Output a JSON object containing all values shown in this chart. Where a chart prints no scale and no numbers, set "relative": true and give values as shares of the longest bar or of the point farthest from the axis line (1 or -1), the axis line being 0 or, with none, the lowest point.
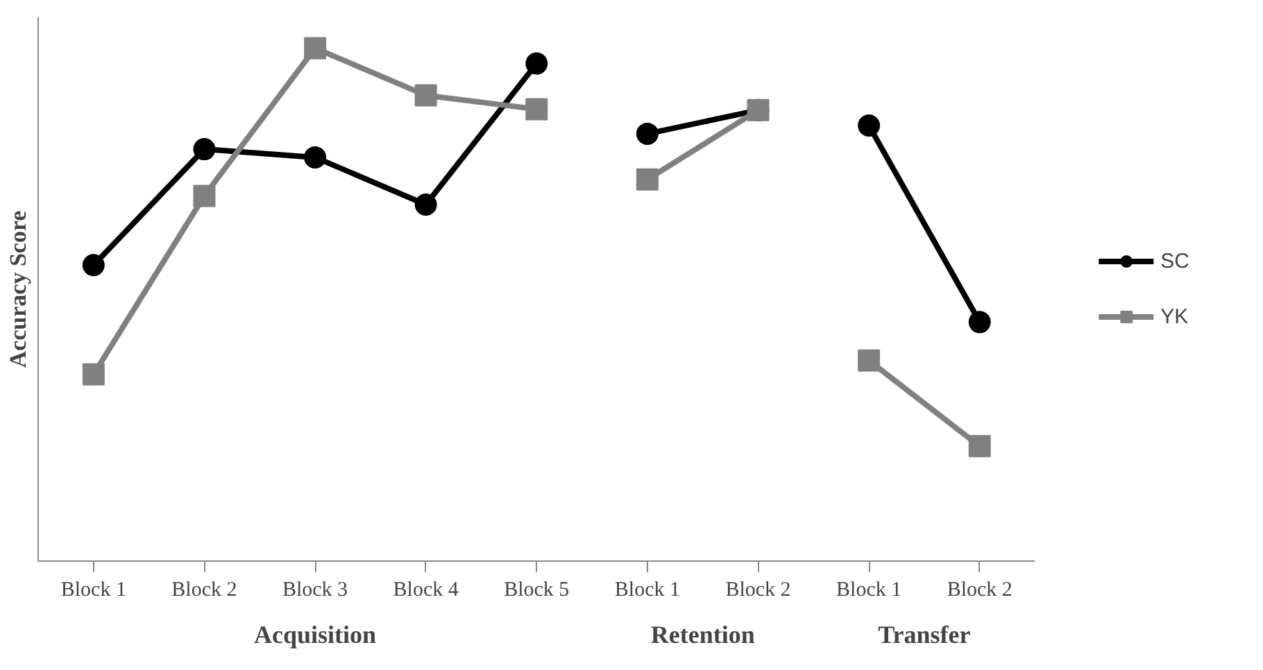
{
  "chart_data": {
    "type": "line",
    "relative": true,
    "ylabel": "Accuracy Score",
    "categories": [
      "Block 1",
      "Block 2",
      "Block 3",
      "Block 4",
      "Block 5",
      "Block 1",
      "Block 2",
      "Block 1",
      "Block 2"
    ],
    "series": [
      {
        "name": "SC",
        "color": "#000000",
        "marker": "circle",
        "values": [
          0.577,
          0.803,
          0.787,
          0.695,
          0.97,
          null,
          null,
          null,
          null
        ]
      },
      {
        "color": "#000000",
        "marker": "circle",
        "values": [
          null,
          null,
          null,
          null,
          null,
          0.833,
          0.879,
          null,
          null
        ]
      },
      {
        "color": "#000000",
        "marker": "circle",
        "values": [
          null,
          null,
          null,
          null,
          null,
          null,
          null,
          0.849,
          0.466
        ]
      },
      {
        "name": "YK",
        "color": "#808080",
        "marker": "square",
        "values": [
          0.364,
          0.712,
          1.0,
          0.908,
          0.881,
          null,
          null,
          null,
          null
        ]
      },
      {
        "color": "#808080",
        "marker": "square",
        "values": [
          null,
          null,
          null,
          null,
          null,
          0.744,
          0.879,
          null,
          null
        ]
      },
      {
        "color": "#808080",
        "marker": "square",
        "values": [
          null,
          null,
          null,
          null,
          null,
          null,
          null,
          0.391,
          0.224
        ]
      }
    ],
    "annotations": [
      "Acquisition",
      "Retention",
      "Transfer"
    ],
    "legend": "right",
    "grid": false,
    "line_style": "solid"
  }
}
